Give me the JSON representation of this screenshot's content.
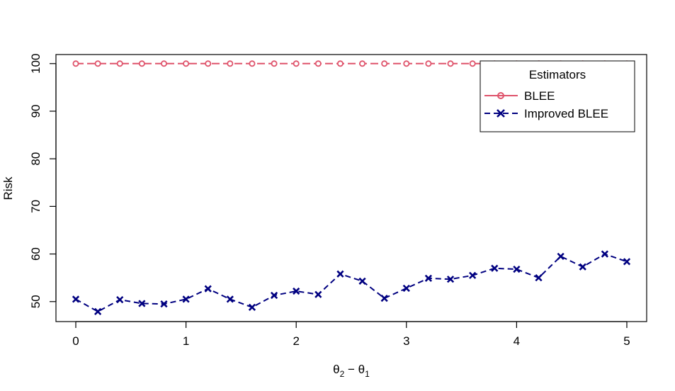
{
  "chart_data": {
    "type": "line",
    "xlabel": "θ2 − θ1",
    "ylabel": "Risk",
    "xlim": [
      -0.18,
      5.18
    ],
    "ylim": [
      45.8,
      101.9
    ],
    "xticks": [
      0,
      1,
      2,
      3,
      4,
      5
    ],
    "xtick_labels": [
      "0",
      "1",
      "2",
      "3",
      "4",
      "5"
    ],
    "yticks": [
      50,
      60,
      70,
      80,
      90,
      100
    ],
    "ytick_labels": [
      "50",
      "60",
      "70",
      "80",
      "90",
      "100"
    ],
    "grid": false,
    "legend": {
      "title": "Estimators",
      "placement": "top-right"
    },
    "x": [
      0,
      0.2,
      0.4,
      0.6,
      0.8,
      1.0,
      1.2,
      1.4,
      1.6,
      1.8,
      2.0,
      2.2,
      2.4,
      2.6,
      2.8,
      3.0,
      3.2,
      3.4,
      3.6,
      3.8,
      4.0,
      4.2,
      4.4,
      4.6,
      4.8,
      5.0
    ],
    "series": [
      {
        "name": "BLEE",
        "color": "#DF536B",
        "marker": "circle",
        "line": "longdash",
        "values": [
          100,
          100,
          100,
          100,
          100,
          100,
          100,
          100,
          100,
          100,
          100,
          100,
          100,
          100,
          100,
          100,
          100,
          100,
          100,
          100,
          100,
          100,
          100,
          100,
          100,
          100
        ]
      },
      {
        "name": "Improved BLEE",
        "color": "#000080",
        "marker": "cross",
        "line": "dashed",
        "values": [
          50.5,
          47.9,
          50.4,
          49.6,
          49.5,
          50.5,
          52.7,
          50.5,
          48.8,
          51.3,
          52.2,
          51.5,
          55.8,
          54.3,
          50.7,
          52.8,
          54.9,
          54.7,
          55.5,
          57.0,
          56.8,
          55.0,
          59.5,
          57.3,
          60.0,
          58.4
        ]
      }
    ]
  }
}
